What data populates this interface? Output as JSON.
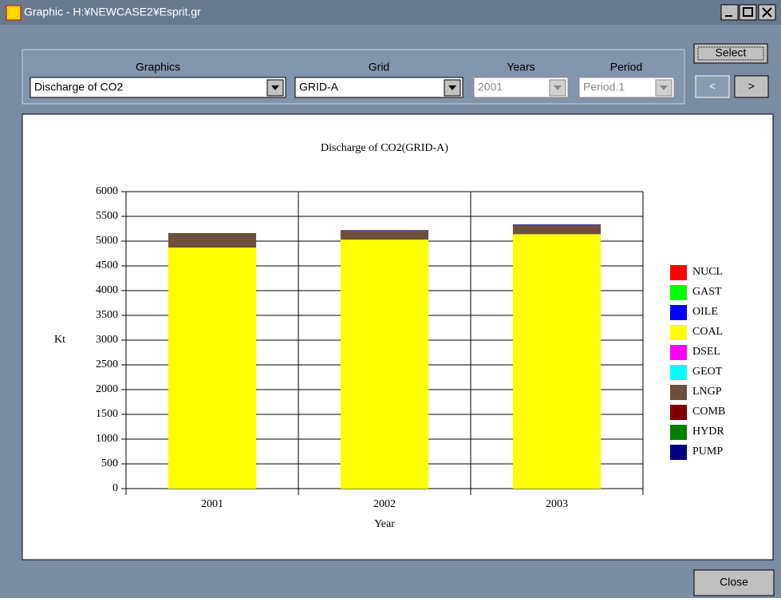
{
  "window": {
    "title": "Graphic - H:¥NEWCASE2¥Esprit.gr"
  },
  "controls": {
    "graphics_label": "Graphics",
    "graphics_value": "Discharge of CO2",
    "grid_label": "Grid",
    "grid_value": "GRID-A",
    "years_label": "Years",
    "years_value": "2001",
    "period_label": "Period",
    "period_value": "Period.1",
    "select_button": "Select",
    "prev_button": "<",
    "next_button": ">",
    "close_button": "Close"
  },
  "chart_data": {
    "type": "stacked_bar",
    "title": "Discharge of CO2(GRID-A)",
    "x_label": "Year",
    "y_label": "Kt",
    "categories": [
      "2001",
      "2002",
      "2003"
    ],
    "ylim": [
      0,
      6000
    ],
    "yticks": [
      0,
      500,
      1000,
      1500,
      2000,
      2500,
      3000,
      3500,
      4000,
      4500,
      5000,
      5500,
      6000
    ],
    "grid": true,
    "series": [
      {
        "name": "NUCL",
        "color": "#ff0000",
        "values": [
          0,
          0,
          0
        ]
      },
      {
        "name": "GAST",
        "color": "#00ff00",
        "values": [
          0,
          0,
          0
        ]
      },
      {
        "name": "OILE",
        "color": "#0000ff",
        "values": [
          0,
          0,
          0
        ]
      },
      {
        "name": "COAL",
        "color": "#ffff00",
        "values": [
          4870,
          5030,
          5140
        ]
      },
      {
        "name": "DSEL",
        "color": "#ff00ff",
        "values": [
          0,
          0,
          0
        ]
      },
      {
        "name": "GEOT",
        "color": "#00ffff",
        "values": [
          0,
          0,
          0
        ]
      },
      {
        "name": "LNGP",
        "color": "#6e4f3c",
        "values": [
          280,
          180,
          180
        ]
      },
      {
        "name": "COMB",
        "color": "#800000",
        "values": [
          0,
          0,
          0
        ]
      },
      {
        "name": "HYDR",
        "color": "#008000",
        "values": [
          0,
          0,
          0
        ]
      },
      {
        "name": "PUMP",
        "color": "#000080",
        "values": [
          10,
          10,
          15
        ]
      }
    ]
  }
}
